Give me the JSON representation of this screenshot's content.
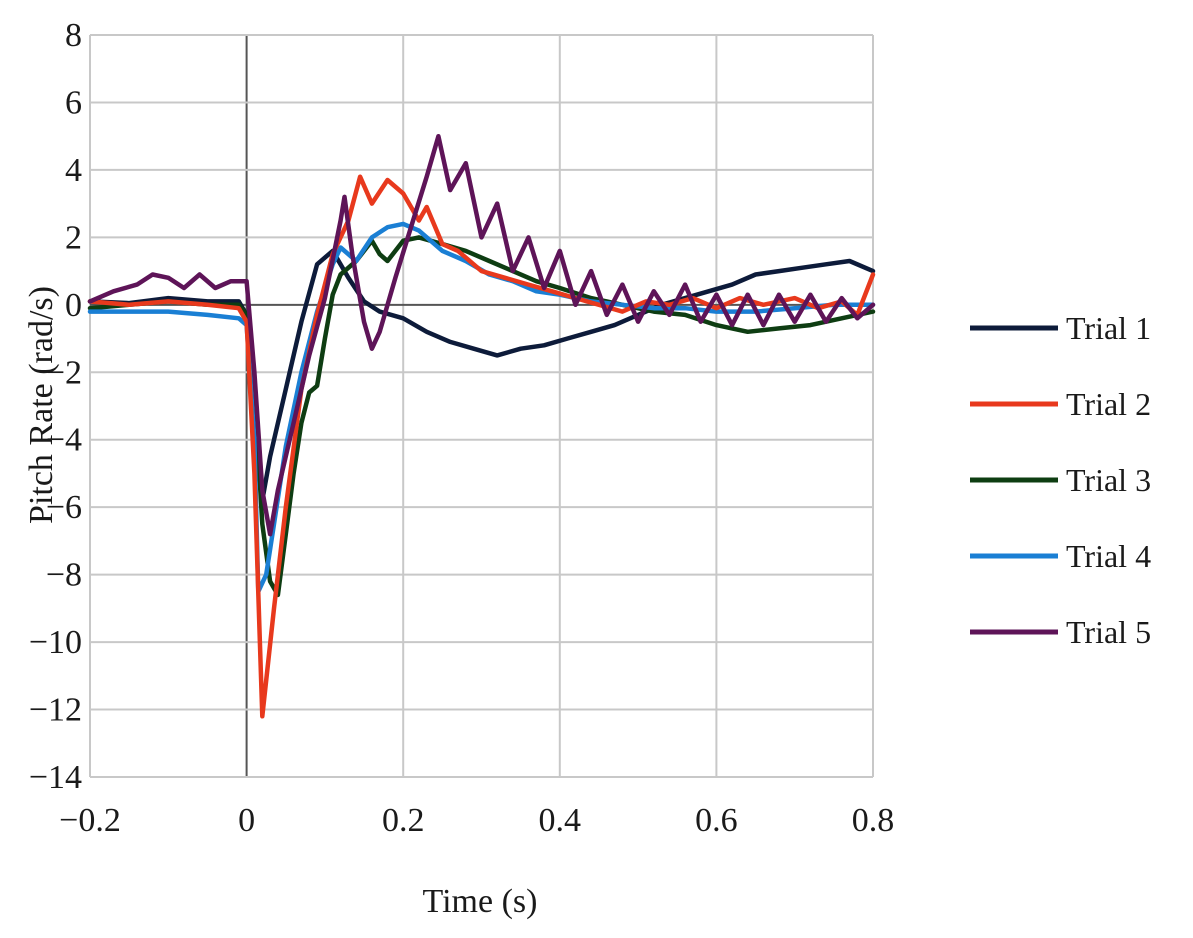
{
  "chart_data": {
    "type": "line",
    "xlabel": "Time (s)",
    "ylabel": "Pitch Rate (rad/s)",
    "xlim": [
      -0.2,
      0.8
    ],
    "ylim": [
      -14,
      8
    ],
    "xticks": [
      -0.2,
      0,
      0.2,
      0.4,
      0.6,
      0.8
    ],
    "yticks": [
      8,
      6,
      4,
      2,
      0,
      -2,
      -4,
      -6,
      -8,
      -10,
      -12,
      -14
    ],
    "xtick_labels": [
      "−0.2",
      "0",
      "0.2",
      "0.4",
      "0.6",
      "0.8"
    ],
    "ytick_labels": [
      "8",
      "6",
      "4",
      "2",
      "0",
      "−2",
      "−4",
      "−6",
      "−8",
      "−10",
      "−12",
      "−14"
    ],
    "grid": true,
    "legend_position": "right",
    "series": [
      {
        "name": "Trial 1",
        "color": "#0d1b3a",
        "points": [
          [
            -0.2,
            0.1
          ],
          [
            -0.15,
            0.05
          ],
          [
            -0.1,
            0.2
          ],
          [
            -0.05,
            0.1
          ],
          [
            -0.01,
            0.1
          ],
          [
            0.0,
            -0.3
          ],
          [
            0.01,
            -3.0
          ],
          [
            0.02,
            -5.8
          ],
          [
            0.03,
            -4.5
          ],
          [
            0.05,
            -2.5
          ],
          [
            0.07,
            -0.5
          ],
          [
            0.09,
            1.2
          ],
          [
            0.11,
            1.6
          ],
          [
            0.13,
            0.8
          ],
          [
            0.15,
            0.1
          ],
          [
            0.17,
            -0.2
          ],
          [
            0.2,
            -0.4
          ],
          [
            0.23,
            -0.8
          ],
          [
            0.26,
            -1.1
          ],
          [
            0.29,
            -1.3
          ],
          [
            0.32,
            -1.5
          ],
          [
            0.35,
            -1.3
          ],
          [
            0.38,
            -1.2
          ],
          [
            0.41,
            -1.0
          ],
          [
            0.44,
            -0.8
          ],
          [
            0.47,
            -0.6
          ],
          [
            0.5,
            -0.3
          ],
          [
            0.53,
            0.0
          ],
          [
            0.56,
            0.2
          ],
          [
            0.59,
            0.4
          ],
          [
            0.62,
            0.6
          ],
          [
            0.65,
            0.9
          ],
          [
            0.68,
            1.0
          ],
          [
            0.71,
            1.1
          ],
          [
            0.74,
            1.2
          ],
          [
            0.77,
            1.3
          ],
          [
            0.8,
            1.0
          ]
        ]
      },
      {
        "name": "Trial 2",
        "color": "#e8391d",
        "points": [
          [
            -0.2,
            0.1
          ],
          [
            -0.15,
            0.0
          ],
          [
            -0.1,
            0.1
          ],
          [
            -0.05,
            0.0
          ],
          [
            -0.01,
            -0.1
          ],
          [
            0.0,
            -0.5
          ],
          [
            0.01,
            -5.0
          ],
          [
            0.02,
            -12.2
          ],
          [
            0.035,
            -9.0
          ],
          [
            0.05,
            -6.0
          ],
          [
            0.07,
            -2.5
          ],
          [
            0.09,
            -0.3
          ],
          [
            0.11,
            1.5
          ],
          [
            0.13,
            2.5
          ],
          [
            0.145,
            3.8
          ],
          [
            0.16,
            3.0
          ],
          [
            0.18,
            3.7
          ],
          [
            0.2,
            3.3
          ],
          [
            0.22,
            2.5
          ],
          [
            0.23,
            2.9
          ],
          [
            0.25,
            1.8
          ],
          [
            0.27,
            1.6
          ],
          [
            0.3,
            1.0
          ],
          [
            0.33,
            0.8
          ],
          [
            0.36,
            0.6
          ],
          [
            0.39,
            0.4
          ],
          [
            0.42,
            0.2
          ],
          [
            0.45,
            0.0
          ],
          [
            0.48,
            -0.2
          ],
          [
            0.51,
            0.1
          ],
          [
            0.54,
            0.0
          ],
          [
            0.57,
            0.2
          ],
          [
            0.6,
            -0.1
          ],
          [
            0.63,
            0.2
          ],
          [
            0.66,
            0.0
          ],
          [
            0.7,
            0.2
          ],
          [
            0.73,
            -0.1
          ],
          [
            0.76,
            0.1
          ],
          [
            0.78,
            -0.3
          ],
          [
            0.8,
            0.9
          ]
        ]
      },
      {
        "name": "Trial 3",
        "color": "#0e3d12",
        "points": [
          [
            -0.2,
            -0.1
          ],
          [
            -0.15,
            0.0
          ],
          [
            -0.1,
            0.1
          ],
          [
            -0.05,
            0.0
          ],
          [
            -0.01,
            0.0
          ],
          [
            0.0,
            -0.3
          ],
          [
            0.01,
            -2.5
          ],
          [
            0.02,
            -6.5
          ],
          [
            0.03,
            -8.2
          ],
          [
            0.04,
            -8.6
          ],
          [
            0.05,
            -6.8
          ],
          [
            0.06,
            -5.0
          ],
          [
            0.07,
            -3.5
          ],
          [
            0.08,
            -2.6
          ],
          [
            0.09,
            -2.4
          ],
          [
            0.1,
            -1.0
          ],
          [
            0.11,
            0.3
          ],
          [
            0.12,
            0.9
          ],
          [
            0.14,
            1.3
          ],
          [
            0.16,
            1.9
          ],
          [
            0.17,
            1.5
          ],
          [
            0.18,
            1.3
          ],
          [
            0.2,
            1.9
          ],
          [
            0.22,
            2.0
          ],
          [
            0.25,
            1.8
          ],
          [
            0.28,
            1.6
          ],
          [
            0.31,
            1.3
          ],
          [
            0.34,
            1.0
          ],
          [
            0.37,
            0.7
          ],
          [
            0.4,
            0.5
          ],
          [
            0.44,
            0.2
          ],
          [
            0.48,
            0.0
          ],
          [
            0.52,
            -0.2
          ],
          [
            0.56,
            -0.3
          ],
          [
            0.6,
            -0.6
          ],
          [
            0.64,
            -0.8
          ],
          [
            0.68,
            -0.7
          ],
          [
            0.72,
            -0.6
          ],
          [
            0.76,
            -0.4
          ],
          [
            0.8,
            -0.2
          ]
        ]
      },
      {
        "name": "Trial 4",
        "color": "#1a7fd4",
        "points": [
          [
            -0.2,
            -0.2
          ],
          [
            -0.15,
            -0.2
          ],
          [
            -0.1,
            -0.2
          ],
          [
            -0.05,
            -0.3
          ],
          [
            -0.01,
            -0.4
          ],
          [
            0.0,
            -0.6
          ],
          [
            0.01,
            -4.0
          ],
          [
            0.015,
            -8.5
          ],
          [
            0.025,
            -8.0
          ],
          [
            0.035,
            -6.5
          ],
          [
            0.05,
            -4.2
          ],
          [
            0.07,
            -2.0
          ],
          [
            0.09,
            -0.2
          ],
          [
            0.11,
            1.2
          ],
          [
            0.12,
            1.7
          ],
          [
            0.14,
            1.3
          ],
          [
            0.16,
            2.0
          ],
          [
            0.18,
            2.3
          ],
          [
            0.2,
            2.4
          ],
          [
            0.22,
            2.2
          ],
          [
            0.25,
            1.6
          ],
          [
            0.28,
            1.3
          ],
          [
            0.31,
            0.9
          ],
          [
            0.34,
            0.7
          ],
          [
            0.37,
            0.4
          ],
          [
            0.4,
            0.3
          ],
          [
            0.44,
            0.1
          ],
          [
            0.48,
            0.0
          ],
          [
            0.52,
            -0.1
          ],
          [
            0.56,
            -0.1
          ],
          [
            0.6,
            -0.2
          ],
          [
            0.65,
            -0.2
          ],
          [
            0.7,
            -0.1
          ],
          [
            0.75,
            0.0
          ],
          [
            0.8,
            0.0
          ]
        ]
      },
      {
        "name": "Trial 5",
        "color": "#5e1458",
        "points": [
          [
            -0.2,
            0.1
          ],
          [
            -0.17,
            0.4
          ],
          [
            -0.14,
            0.6
          ],
          [
            -0.12,
            0.9
          ],
          [
            -0.1,
            0.8
          ],
          [
            -0.08,
            0.5
          ],
          [
            -0.06,
            0.9
          ],
          [
            -0.04,
            0.5
          ],
          [
            -0.02,
            0.7
          ],
          [
            0.0,
            0.7
          ],
          [
            0.01,
            -2.0
          ],
          [
            0.02,
            -5.5
          ],
          [
            0.03,
            -6.8
          ],
          [
            0.04,
            -5.5
          ],
          [
            0.06,
            -3.5
          ],
          [
            0.08,
            -1.5
          ],
          [
            0.1,
            0.2
          ],
          [
            0.12,
            2.5
          ],
          [
            0.125,
            3.2
          ],
          [
            0.135,
            1.5
          ],
          [
            0.15,
            -0.5
          ],
          [
            0.16,
            -1.3
          ],
          [
            0.17,
            -0.8
          ],
          [
            0.19,
            0.8
          ],
          [
            0.21,
            2.3
          ],
          [
            0.23,
            3.8
          ],
          [
            0.245,
            5.0
          ],
          [
            0.26,
            3.4
          ],
          [
            0.28,
            4.2
          ],
          [
            0.3,
            2.0
          ],
          [
            0.32,
            3.0
          ],
          [
            0.34,
            1.0
          ],
          [
            0.36,
            2.0
          ],
          [
            0.38,
            0.5
          ],
          [
            0.4,
            1.6
          ],
          [
            0.42,
            0.0
          ],
          [
            0.44,
            1.0
          ],
          [
            0.46,
            -0.3
          ],
          [
            0.48,
            0.6
          ],
          [
            0.5,
            -0.5
          ],
          [
            0.52,
            0.4
          ],
          [
            0.54,
            -0.3
          ],
          [
            0.56,
            0.6
          ],
          [
            0.58,
            -0.5
          ],
          [
            0.6,
            0.3
          ],
          [
            0.62,
            -0.6
          ],
          [
            0.64,
            0.3
          ],
          [
            0.66,
            -0.6
          ],
          [
            0.68,
            0.3
          ],
          [
            0.7,
            -0.5
          ],
          [
            0.72,
            0.3
          ],
          [
            0.74,
            -0.5
          ],
          [
            0.76,
            0.2
          ],
          [
            0.78,
            -0.4
          ],
          [
            0.8,
            0.0
          ]
        ]
      }
    ]
  }
}
